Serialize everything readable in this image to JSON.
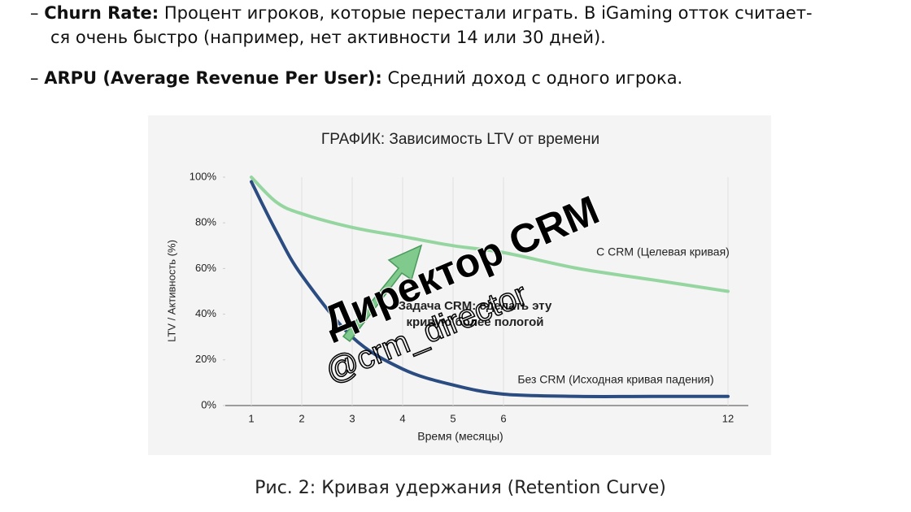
{
  "bullets": [
    {
      "term": "Churn Rate:",
      "lines": [
        "Процент игроков, которые перестали играть. В iGaming отток считает-",
        "ся очень быстро (например, нет активности 14 или 30 дней)."
      ]
    },
    {
      "term": "ARPU (Average Revenue Per User):",
      "lines": [
        "Средний доход с одного игрока."
      ]
    }
  ],
  "chart_data": {
    "type": "line",
    "title": "ГРАФИК: Зависимость LTV от времени",
    "x_label": "Время (месяцы)",
    "y_label": "LTV / Активность (%)",
    "x": [
      1,
      1.5,
      2,
      3,
      4,
      5,
      6,
      8,
      10,
      12
    ],
    "series": [
      {
        "name": "С CRM (Целевая кривая)",
        "color": "#95d5a0",
        "values": [
          100,
          89,
          84,
          78,
          74,
          70,
          67,
          60,
          55,
          50
        ]
      },
      {
        "name": "Без CRM (Исходная кривая падения)",
        "color": "#2b4c80",
        "values": [
          98,
          76,
          57,
          30,
          16,
          9,
          5,
          4,
          4,
          4
        ]
      }
    ],
    "xticks": [
      1,
      2,
      3,
      4,
      5,
      6,
      12
    ],
    "ylim": [
      0,
      100
    ],
    "yticks": [
      {
        "value": 0,
        "label": "0%"
      },
      {
        "value": 20,
        "label": "20%"
      },
      {
        "value": 40,
        "label": "40%"
      },
      {
        "value": 60,
        "label": "60%"
      },
      {
        "value": 80,
        "label": "80%"
      },
      {
        "value": 100,
        "label": "100%"
      }
    ],
    "annotation": [
      "Задача CRM: сделать эту",
      "кривую более пологой"
    ],
    "watermark": [
      "Директор CRM",
      "@crm_director"
    ]
  },
  "caption": "Рис. 2: Кривая удержания (Retention Curve)"
}
